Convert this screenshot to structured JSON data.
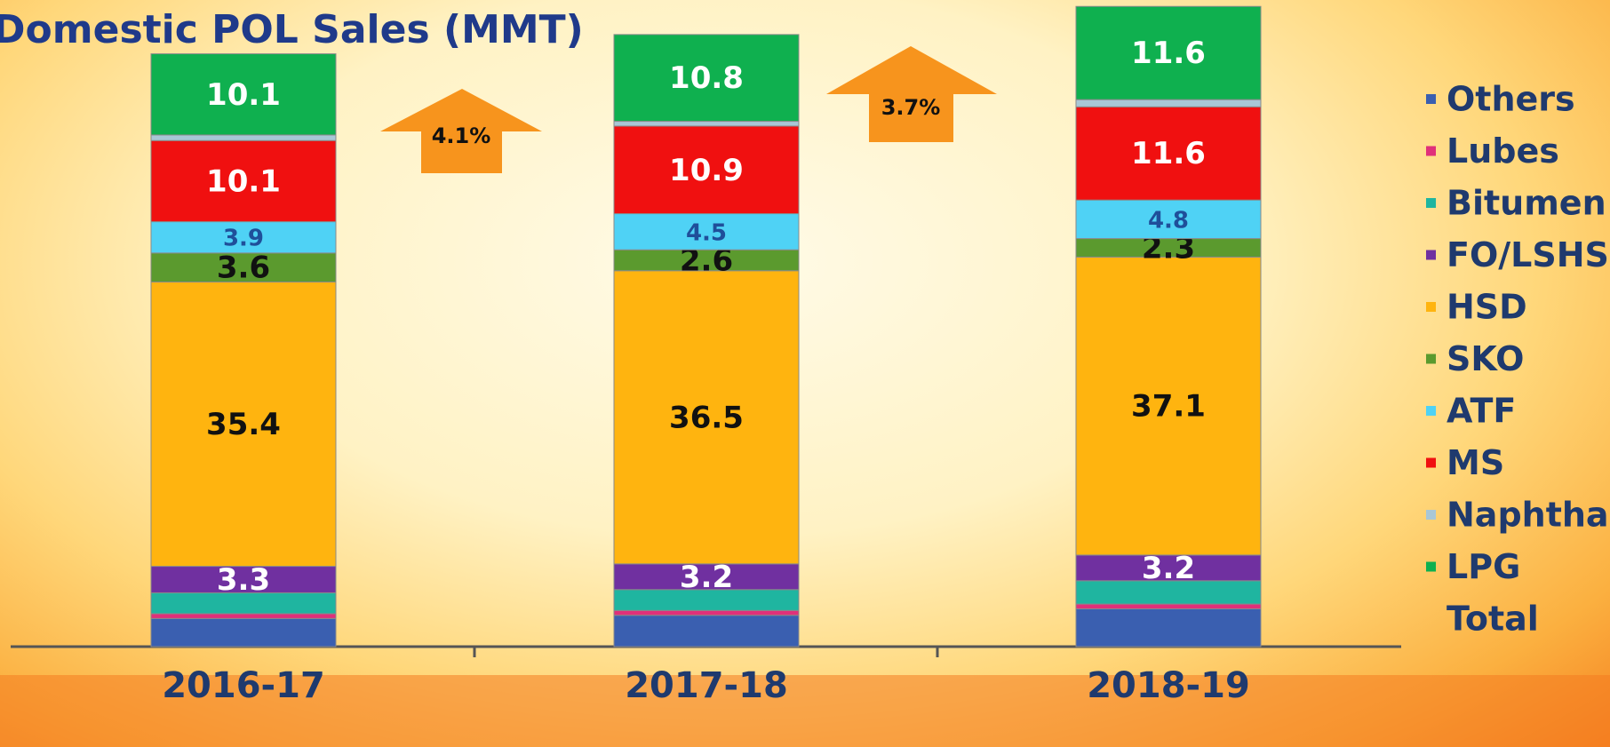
{
  "chart_data": {
    "type": "stacked_bar",
    "title": "Domestic POL Sales (MMT)",
    "categories": [
      "2016-17",
      "2017-18",
      "2018-19"
    ],
    "ylim": [
      0,
      80.5
    ],
    "series": [
      {
        "name": "Others",
        "color": "#3a5fb0",
        "values": [
          3.5,
          3.9,
          4.7
        ],
        "show_labels": false
      },
      {
        "name": "Lubes",
        "color": "#e0307a",
        "values": [
          0.6,
          0.6,
          0.6
        ],
        "show_labels": false
      },
      {
        "name": "Bitumen",
        "color": "#1fb5a0",
        "values": [
          2.6,
          2.6,
          2.9
        ],
        "show_labels": false
      },
      {
        "name": "FO/LSHS",
        "color": "#7030a0",
        "values": [
          3.3,
          3.2,
          3.2
        ],
        "show_labels": true,
        "label_color": "#ffffff"
      },
      {
        "name": "HSD",
        "color": "#ffb40f",
        "values": [
          35.4,
          36.5,
          37.1
        ],
        "show_labels": true,
        "label_color": "#111111"
      },
      {
        "name": "SKO",
        "color": "#5b9a2e",
        "values": [
          3.6,
          2.6,
          2.3
        ],
        "show_labels": true,
        "label_color": "#111111"
      },
      {
        "name": "ATF",
        "color": "#4fd2f5",
        "values": [
          3.9,
          4.5,
          4.8
        ],
        "show_labels": true,
        "label_color": "#1f4f9a"
      },
      {
        "name": "MS",
        "color": "#f01010",
        "values": [
          10.1,
          10.9,
          11.6
        ],
        "show_labels": true,
        "label_color": "#ffffff"
      },
      {
        "name": "Naphtha",
        "color": "#a9c7d6",
        "values": [
          0.7,
          0.6,
          0.9
        ],
        "show_labels": false
      },
      {
        "name": "LPG",
        "color": "#0fb04f",
        "values": [
          10.1,
          10.8,
          11.6
        ],
        "show_labels": true,
        "label_color": "#ffffff"
      },
      {
        "name": "Total",
        "values": [
          null,
          null,
          null
        ]
      }
    ],
    "annotations": [
      {
        "text": "4.1%"
      },
      {
        "text": "3.7%"
      }
    ]
  }
}
